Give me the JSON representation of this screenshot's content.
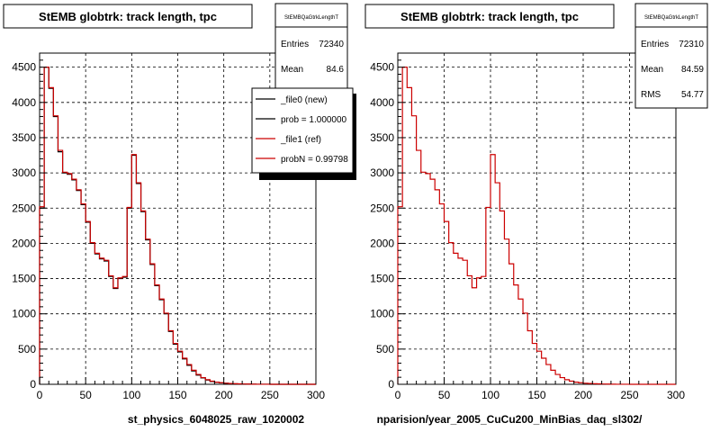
{
  "chart_data": [
    {
      "type": "histogram",
      "title": "StEMB globtrk: track length, tpc",
      "xlabel": "st_physics_6048025_raw_1020002",
      "xlim": [
        0,
        300
      ],
      "ylim": [
        0,
        4700
      ],
      "xticks": [
        0,
        50,
        100,
        150,
        200,
        250,
        300
      ],
      "yticks": [
        0,
        500,
        1000,
        1500,
        2000,
        2500,
        3000,
        3500,
        4000,
        4500
      ],
      "grid": true,
      "stats": {
        "name": "StEMBQaGtrkLengthT",
        "rows": [
          {
            "label": "Entries",
            "value": "72340"
          },
          {
            "label": "Mean",
            "value": "84.6"
          }
        ]
      },
      "legend": [
        {
          "label": "_file0 (new)",
          "color": "#000000"
        },
        {
          "label": "prob = 1.000000",
          "color": "#000000"
        },
        {
          "label": "_file1 (ref)",
          "color": "#cc0000"
        },
        {
          "label": "probN = 0.99798",
          "color": "#cc0000"
        }
      ],
      "series": [
        {
          "name": "_file0 (new)",
          "color": "#000000",
          "bin_width": 5,
          "x_start": 0,
          "values": [
            2500,
            4500,
            4200,
            3800,
            3300,
            3000,
            2980,
            2900,
            2750,
            2550,
            2300,
            2000,
            1850,
            1780,
            1750,
            1530,
            1360,
            1500,
            1520,
            2500,
            3250,
            2850,
            2450,
            2050,
            1700,
            1400,
            1200,
            1000,
            750,
            570,
            460,
            360,
            270,
            190,
            130,
            90,
            60,
            40,
            28,
            20,
            14,
            10,
            7,
            5,
            4,
            3,
            2,
            1,
            1,
            1,
            0,
            0,
            0,
            0,
            0,
            0,
            0,
            0,
            0,
            0
          ]
        },
        {
          "name": "_file1 (ref)",
          "color": "#cc0000",
          "bin_width": 5,
          "x_start": 0,
          "values": [
            2520,
            4500,
            4210,
            3810,
            3320,
            3010,
            2990,
            2910,
            2760,
            2560,
            2310,
            2010,
            1860,
            1790,
            1760,
            1540,
            1370,
            1510,
            1530,
            2510,
            3260,
            2860,
            2460,
            2060,
            1710,
            1410,
            1210,
            1010,
            760,
            580,
            470,
            370,
            280,
            200,
            140,
            95,
            65,
            45,
            30,
            22,
            15,
            11,
            8,
            6,
            4,
            3,
            2,
            1,
            1,
            1,
            0,
            0,
            0,
            0,
            0,
            0,
            0,
            0,
            0,
            0
          ]
        }
      ]
    },
    {
      "type": "histogram",
      "title": "StEMB globtrk: track length, tpc",
      "xlabel": "nparision/year_2005_CuCu200_MinBias_daq_sl302/",
      "xlim": [
        0,
        300
      ],
      "ylim": [
        0,
        4700
      ],
      "xticks": [
        0,
        50,
        100,
        150,
        200,
        250,
        300
      ],
      "yticks": [
        0,
        500,
        1000,
        1500,
        2000,
        2500,
        3000,
        3500,
        4000,
        4500
      ],
      "grid": true,
      "stats": {
        "name": "StEMBQaGtrkLengthT",
        "rows": [
          {
            "label": "Entries",
            "value": "72310"
          },
          {
            "label": "Mean",
            "value": "84.59"
          },
          {
            "label": "RMS",
            "value": "54.77"
          }
        ]
      },
      "series": [
        {
          "name": "_file1 (ref)",
          "color": "#cc0000",
          "bin_width": 5,
          "x_start": 0,
          "values": [
            2520,
            4500,
            4210,
            3810,
            3320,
            3010,
            2990,
            2910,
            2760,
            2560,
            2310,
            2010,
            1860,
            1790,
            1760,
            1540,
            1370,
            1510,
            1530,
            2510,
            3260,
            2860,
            2460,
            2060,
            1710,
            1410,
            1210,
            1010,
            760,
            580,
            470,
            370,
            280,
            200,
            140,
            95,
            65,
            45,
            30,
            22,
            15,
            11,
            8,
            6,
            4,
            3,
            2,
            1,
            1,
            1,
            0,
            0,
            0,
            0,
            0,
            0,
            0,
            0,
            0,
            0
          ]
        }
      ]
    }
  ]
}
